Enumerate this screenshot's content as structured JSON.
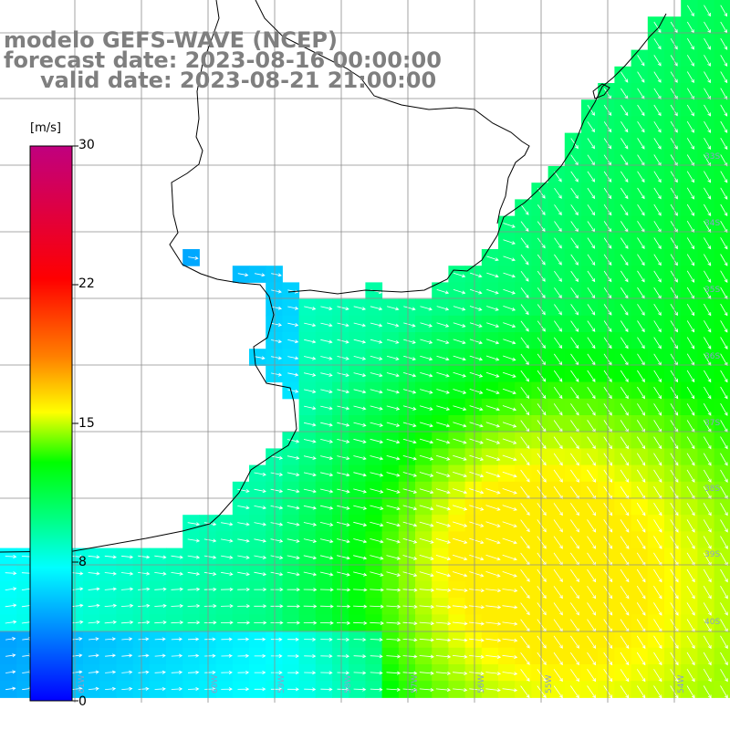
{
  "title": {
    "line1": "modelo GEFS-WAVE (NCEP)",
    "line2": "forecast date: 2023-08-16 00:00:00",
    "line3": "valid date: 2023-08-21 21:00:00"
  },
  "colorbar": {
    "unit": "[m/s]",
    "ticks": [
      "30",
      "22",
      "15",
      "8",
      "0"
    ],
    "range": [
      0,
      30
    ]
  },
  "lat_labels": [
    "33S",
    "34S",
    "35S",
    "36S",
    "37S",
    "38S",
    "39S",
    "40S"
  ],
  "lon_labels": [
    "61W",
    "60W",
    "59W",
    "58W",
    "57W",
    "56W",
    "55W",
    "54W"
  ],
  "colors": {
    "land": "#ffffff",
    "coastline": "#000000",
    "grid": "#8c8c8c",
    "arrows": "#ffffff",
    "labels": "#7f7f7f"
  }
}
